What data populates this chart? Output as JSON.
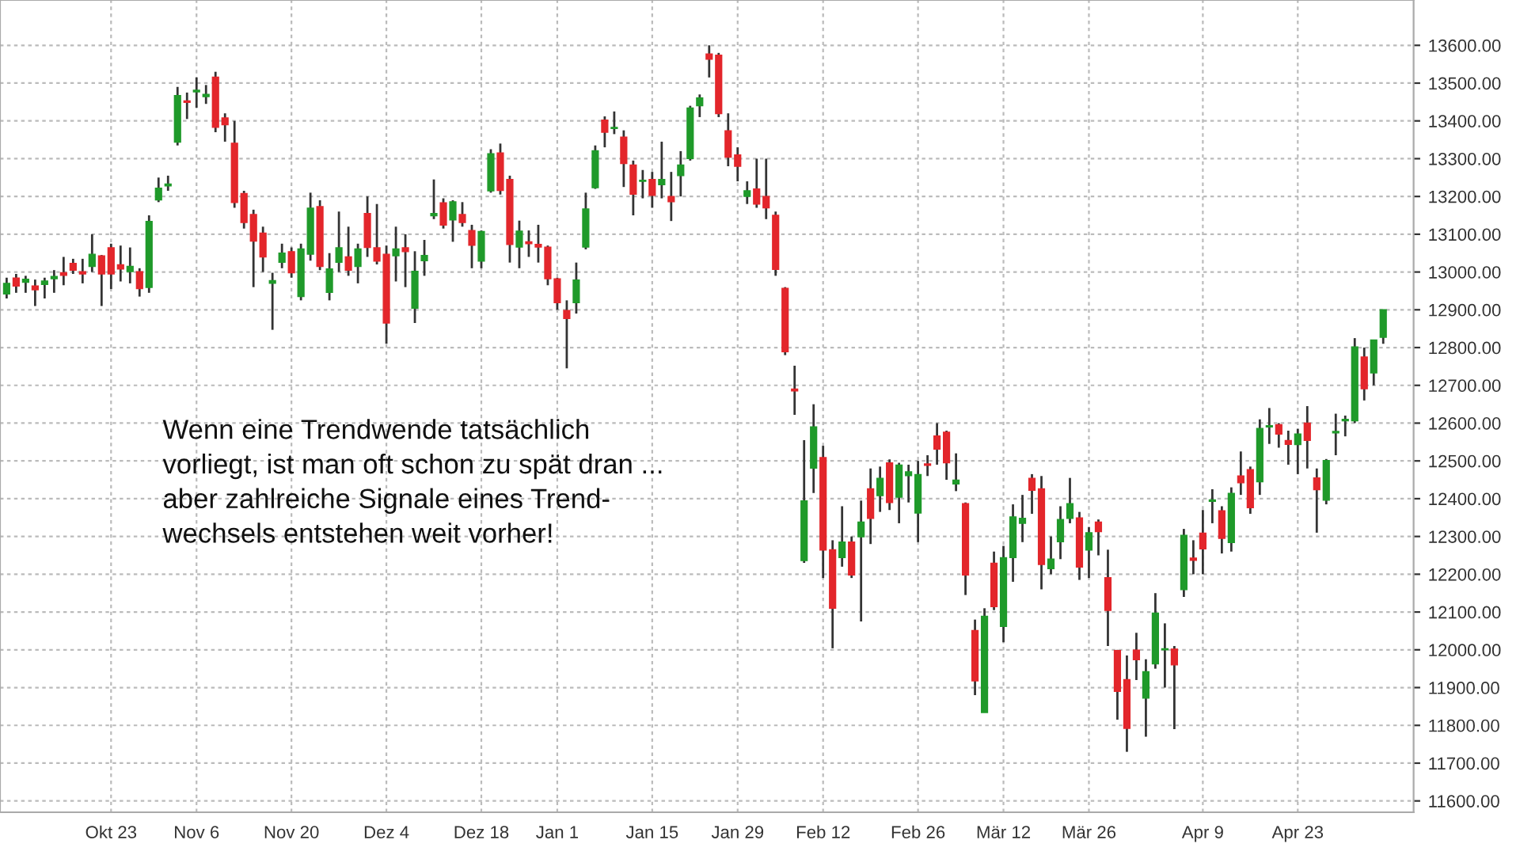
{
  "chart_data": {
    "type": "candlestick",
    "categories": [
      null,
      null,
      null,
      null,
      null,
      null,
      null,
      null,
      null,
      null,
      null,
      "Okt 23",
      null,
      null,
      null,
      null,
      null,
      null,
      null,
      null,
      "Nov 6",
      null,
      null,
      null,
      null,
      null,
      null,
      null,
      null,
      null,
      "Nov 20",
      null,
      null,
      null,
      null,
      null,
      null,
      null,
      null,
      null,
      "Dez 4",
      null,
      null,
      null,
      null,
      null,
      null,
      null,
      null,
      null,
      "Dez 18",
      null,
      null,
      null,
      null,
      null,
      null,
      null,
      "Jan 1",
      null,
      null,
      null,
      null,
      null,
      null,
      null,
      null,
      null,
      "Jan 15",
      null,
      null,
      null,
      null,
      null,
      null,
      null,
      null,
      "Jan 29",
      null,
      null,
      null,
      null,
      null,
      null,
      null,
      null,
      "Feb 12",
      null,
      null,
      null,
      null,
      null,
      null,
      null,
      null,
      null,
      "Feb 26",
      null,
      null,
      null,
      null,
      null,
      null,
      null,
      null,
      "Mär 12",
      null,
      null,
      null,
      null,
      null,
      null,
      null,
      null,
      "Mär 26",
      null,
      null,
      null,
      null,
      null,
      null,
      null,
      null,
      null,
      null,
      null,
      "Apr 9",
      null,
      null,
      null,
      null,
      null,
      null,
      null,
      null,
      null,
      "Apr 23",
      null,
      null,
      null,
      null,
      null,
      null,
      null,
      null,
      null
    ],
    "ohlc": [
      [
        12942,
        12985,
        12930,
        12970
      ],
      [
        12984,
        12995,
        12945,
        12963
      ],
      [
        12973,
        12990,
        12945,
        12981
      ],
      [
        12963,
        12980,
        12910,
        12953
      ],
      [
        12967,
        12985,
        12930,
        12976
      ],
      [
        12982,
        13005,
        12945,
        12988
      ],
      [
        12998,
        13040,
        12965,
        12991
      ],
      [
        13023,
        13035,
        12995,
        13005
      ],
      [
        13001,
        13035,
        12970,
        12995
      ],
      [
        13015,
        13100,
        13000,
        13047
      ],
      [
        13043,
        13045,
        12910,
        12995
      ],
      [
        13064,
        13075,
        12955,
        12995
      ],
      [
        13019,
        13070,
        12975,
        13008
      ],
      [
        13001,
        13065,
        12970,
        13015
      ],
      [
        13001,
        13010,
        12935,
        12956
      ],
      [
        12959,
        13150,
        12945,
        13134
      ],
      [
        13191,
        13250,
        13185,
        13222
      ],
      [
        13228,
        13255,
        13215,
        13233
      ],
      [
        13344,
        13490,
        13335,
        13467
      ],
      [
        13453,
        13475,
        13405,
        13449
      ],
      [
        13477,
        13515,
        13435,
        13481
      ],
      [
        13464,
        13495,
        13445,
        13470
      ],
      [
        13516,
        13530,
        13370,
        13383
      ],
      [
        13408,
        13420,
        13345,
        13390
      ],
      [
        13341,
        13400,
        13170,
        13184
      ],
      [
        13208,
        13215,
        13115,
        13131
      ],
      [
        13152,
        13165,
        12960,
        13082
      ],
      [
        13103,
        13120,
        13000,
        13040
      ],
      [
        12970,
        12998,
        12847,
        12977
      ],
      [
        13026,
        13075,
        13010,
        13050
      ],
      [
        13054,
        13065,
        12985,
        12998
      ],
      [
        12935,
        13075,
        12925,
        13061
      ],
      [
        13047,
        13210,
        13030,
        13169
      ],
      [
        13173,
        13190,
        13005,
        13015
      ],
      [
        12946,
        13050,
        12925,
        13008
      ],
      [
        13026,
        13160,
        13000,
        13064
      ],
      [
        13040,
        13120,
        12990,
        13005
      ],
      [
        13015,
        13075,
        12970,
        13061
      ],
      [
        13155,
        13200,
        13040,
        13065
      ],
      [
        13064,
        13180,
        13020,
        13029
      ],
      [
        13047,
        13070,
        12810,
        12865
      ],
      [
        13043,
        13120,
        12975,
        13061
      ],
      [
        13064,
        13100,
        12960,
        13054
      ],
      [
        12904,
        13055,
        12865,
        13002
      ],
      [
        13030,
        13085,
        12990,
        13044
      ],
      [
        13149,
        13245,
        13140,
        13155
      ],
      [
        13183,
        13195,
        13115,
        13124
      ],
      [
        13138,
        13190,
        13080,
        13186
      ],
      [
        13152,
        13185,
        13120,
        13131
      ],
      [
        13110,
        13125,
        13010,
        13071
      ],
      [
        13029,
        13110,
        13010,
        13107
      ],
      [
        13215,
        13325,
        13210,
        13313
      ],
      [
        13315,
        13340,
        13205,
        13216
      ],
      [
        13245,
        13255,
        13025,
        13073
      ],
      [
        13066,
        13136,
        13010,
        13108
      ],
      [
        13080,
        13110,
        13040,
        13075
      ],
      [
        13073,
        13125,
        13025,
        13066
      ],
      [
        13066,
        13070,
        12965,
        12982
      ],
      [
        12982,
        12985,
        12900,
        12919
      ],
      [
        12898,
        12925,
        12745,
        12877
      ],
      [
        12919,
        13025,
        12890,
        12979
      ],
      [
        13066,
        13210,
        13060,
        13167
      ],
      [
        13223,
        13335,
        13220,
        13321
      ],
      [
        13402,
        13412,
        13330,
        13370
      ],
      [
        13380,
        13425,
        13365,
        13383
      ],
      [
        13357,
        13375,
        13225,
        13287
      ],
      [
        13283,
        13295,
        13150,
        13206
      ],
      [
        13240,
        13270,
        13195,
        13243
      ],
      [
        13245,
        13265,
        13170,
        13203
      ],
      [
        13231,
        13345,
        13195,
        13245
      ],
      [
        13200,
        13265,
        13135,
        13186
      ],
      [
        13255,
        13320,
        13200,
        13283
      ],
      [
        13300,
        13440,
        13295,
        13434
      ],
      [
        13440,
        13470,
        13410,
        13461
      ],
      [
        13577,
        13600,
        13515,
        13563
      ],
      [
        13574,
        13580,
        13410,
        13419
      ],
      [
        13374,
        13420,
        13280,
        13304
      ],
      [
        13310,
        13330,
        13240,
        13280
      ],
      [
        13200,
        13240,
        13180,
        13215
      ],
      [
        13220,
        13300,
        13170,
        13180
      ],
      [
        13200,
        13300,
        13140,
        13170
      ],
      [
        13150,
        13160,
        12990,
        13007
      ],
      [
        12957,
        12960,
        12780,
        12789
      ],
      [
        12690,
        12752,
        12622,
        12685
      ],
      [
        12236,
        12555,
        12230,
        12394
      ],
      [
        12481,
        12650,
        12415,
        12590
      ],
      [
        12509,
        12540,
        12190,
        12264
      ],
      [
        12265,
        12290,
        12004,
        12110
      ],
      [
        12244,
        12380,
        12220,
        12285
      ],
      [
        12285,
        12300,
        12190,
        12198
      ],
      [
        12299,
        12395,
        12075,
        12338
      ],
      [
        12426,
        12480,
        12280,
        12348
      ],
      [
        12408,
        12485,
        12365,
        12454
      ],
      [
        12495,
        12504,
        12370,
        12390
      ],
      [
        12404,
        12495,
        12335,
        12489
      ],
      [
        12461,
        12490,
        12390,
        12471
      ],
      [
        12362,
        12500,
        12285,
        12464
      ],
      [
        12492,
        12515,
        12460,
        12488
      ],
      [
        12566,
        12600,
        12490,
        12531
      ],
      [
        12576,
        12580,
        12450,
        12495
      ],
      [
        12439,
        12520,
        12420,
        12449
      ],
      [
        12387,
        12390,
        12145,
        12198
      ],
      [
        12051,
        12080,
        11880,
        11918
      ],
      [
        11834,
        12110,
        11834,
        12089
      ],
      [
        12229,
        12260,
        12105,
        12114
      ],
      [
        12062,
        12275,
        12020,
        12244
      ],
      [
        12244,
        12385,
        12180,
        12352
      ],
      [
        12335,
        12410,
        12285,
        12348
      ],
      [
        12454,
        12465,
        12360,
        12422
      ],
      [
        12426,
        12460,
        12160,
        12226
      ],
      [
        12215,
        12300,
        12200,
        12240
      ],
      [
        12286,
        12380,
        12240,
        12345
      ],
      [
        12348,
        12455,
        12335,
        12387
      ],
      [
        12349,
        12365,
        12185,
        12219
      ],
      [
        12264,
        12325,
        12190,
        12310
      ],
      [
        12338,
        12345,
        12250,
        12313
      ],
      [
        12191,
        12265,
        12010,
        12104
      ],
      [
        11998,
        12000,
        11815,
        11890
      ],
      [
        11921,
        11985,
        11730,
        11792
      ],
      [
        11999,
        12045,
        11920,
        11974
      ],
      [
        11872,
        11975,
        11770,
        11942
      ],
      [
        11963,
        12150,
        11950,
        12097
      ],
      [
        12000,
        12070,
        11900,
        12003
      ],
      [
        12002,
        12010,
        11790,
        11960
      ],
      [
        12159,
        12320,
        12140,
        12303
      ],
      [
        12243,
        12290,
        12200,
        12237
      ],
      [
        12309,
        12370,
        12200,
        12267
      ],
      [
        12393,
        12425,
        12335,
        12397
      ],
      [
        12368,
        12380,
        12255,
        12295
      ],
      [
        12284,
        12430,
        12260,
        12414
      ],
      [
        12460,
        12525,
        12410,
        12442
      ],
      [
        12477,
        12485,
        12360,
        12376
      ],
      [
        12445,
        12610,
        12410,
        12586
      ],
      [
        12590,
        12640,
        12545,
        12593
      ],
      [
        12596,
        12600,
        12535,
        12571
      ],
      [
        12554,
        12580,
        12490,
        12544
      ],
      [
        12543,
        12585,
        12465,
        12571
      ],
      [
        12600,
        12645,
        12480,
        12554
      ],
      [
        12455,
        12480,
        12310,
        12424
      ],
      [
        12396,
        12505,
        12385,
        12501
      ],
      [
        12574,
        12625,
        12515,
        12578
      ],
      [
        12606,
        12620,
        12565,
        12610
      ],
      [
        12606,
        12825,
        12600,
        12802
      ],
      [
        12775,
        12800,
        12660,
        12691
      ],
      [
        12733,
        12820,
        12700,
        12820
      ],
      [
        12827,
        12900,
        12810,
        12900
      ]
    ],
    "ylim": [
      11570,
      13720
    ],
    "yticks": [
      {
        "value": 11600,
        "label": "11600.00"
      },
      {
        "value": 11700,
        "label": "11700.00"
      },
      {
        "value": 11800,
        "label": "11800.00"
      },
      {
        "value": 11900,
        "label": "11900.00"
      },
      {
        "value": 12000,
        "label": "12000.00"
      },
      {
        "value": 12100,
        "label": "12100.00"
      },
      {
        "value": 12200,
        "label": "12200.00"
      },
      {
        "value": 12300,
        "label": "12300.00"
      },
      {
        "value": 12400,
        "label": "12400.00"
      },
      {
        "value": 12500,
        "label": "12500.00"
      },
      {
        "value": 12600,
        "label": "12600.00"
      },
      {
        "value": 12700,
        "label": "12700.00"
      },
      {
        "value": 12800,
        "label": "12800.00"
      },
      {
        "value": 12900,
        "label": "12900.00"
      },
      {
        "value": 13000,
        "label": "13000.00"
      },
      {
        "value": 13100,
        "label": "13100.00"
      },
      {
        "value": 13200,
        "label": "13200.00"
      },
      {
        "value": 13300,
        "label": "13300.00"
      },
      {
        "value": 13400,
        "label": "13400.00"
      },
      {
        "value": 13500,
        "label": "13500.00"
      },
      {
        "value": 13600,
        "label": "13600.00"
      }
    ],
    "grid": true,
    "annotations": [
      "Wenn eine Trendwende tatsächlich\nvorliegt, ist man oft schon zu spät dran ...\naber zahlreiche Signale eines Trend-\nwechsels entstehen weit vorher!"
    ]
  }
}
